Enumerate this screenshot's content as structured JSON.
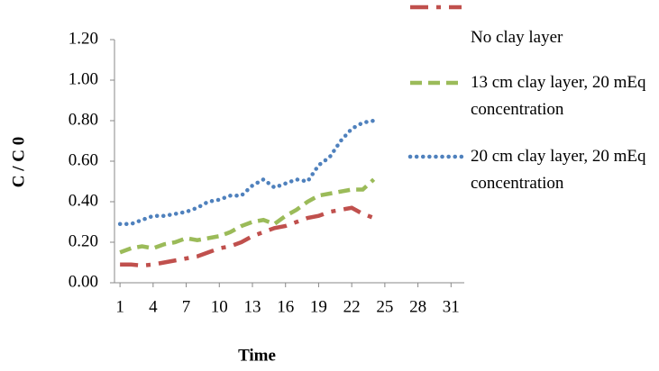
{
  "chart_data": {
    "type": "line",
    "x_label": "Time",
    "y_label": "C / C 0",
    "x": [
      1,
      2,
      3,
      4,
      5,
      6,
      7,
      8,
      9,
      10,
      11,
      12,
      13,
      14,
      15,
      16,
      17,
      18,
      19,
      20,
      21,
      22,
      23,
      24
    ],
    "series": [
      {
        "name": "No clay layer",
        "color": "#c0504d",
        "style": "dash-dot",
        "values": [
          0.09,
          0.09,
          0.085,
          0.09,
          0.1,
          0.11,
          0.12,
          0.13,
          0.15,
          0.17,
          0.18,
          0.2,
          0.23,
          0.25,
          0.27,
          0.28,
          0.3,
          0.32,
          0.33,
          0.35,
          0.36,
          0.37,
          0.34,
          0.32
        ]
      },
      {
        "name": "13 cm clay layer, 20 mEq concentration",
        "color": "#9bbb59",
        "style": "dashed",
        "values": [
          0.15,
          0.17,
          0.18,
          0.17,
          0.19,
          0.2,
          0.22,
          0.21,
          0.22,
          0.23,
          0.25,
          0.28,
          0.3,
          0.31,
          0.29,
          0.33,
          0.36,
          0.4,
          0.43,
          0.44,
          0.45,
          0.46,
          0.46,
          0.51
        ]
      },
      {
        "name": "20 cm clay layer, 20 mEq concentration",
        "color": "#4f81bd",
        "style": "dotted",
        "values": [
          0.29,
          0.29,
          0.31,
          0.33,
          0.33,
          0.34,
          0.35,
          0.37,
          0.4,
          0.41,
          0.43,
          0.43,
          0.48,
          0.51,
          0.47,
          0.49,
          0.51,
          0.5,
          0.58,
          0.62,
          0.7,
          0.76,
          0.79,
          0.8
        ]
      }
    ],
    "xlim": [
      0.5,
      32.2
    ],
    "xticks": [
      1,
      4,
      7,
      10,
      13,
      16,
      19,
      22,
      25,
      28,
      31
    ],
    "ylim": [
      0,
      1.2
    ],
    "yticks": [
      {
        "value": 0,
        "label": "0.00"
      },
      {
        "value": 0.2,
        "label": "0.20"
      },
      {
        "value": 0.4,
        "label": "0.40"
      },
      {
        "value": 0.6,
        "label": "0.60"
      },
      {
        "value": 0.8,
        "label": "0.80"
      },
      {
        "value": 1.0,
        "label": "1.00"
      },
      {
        "value": 1.2,
        "label": "1.20"
      }
    ],
    "grid": false,
    "legend": "right"
  }
}
